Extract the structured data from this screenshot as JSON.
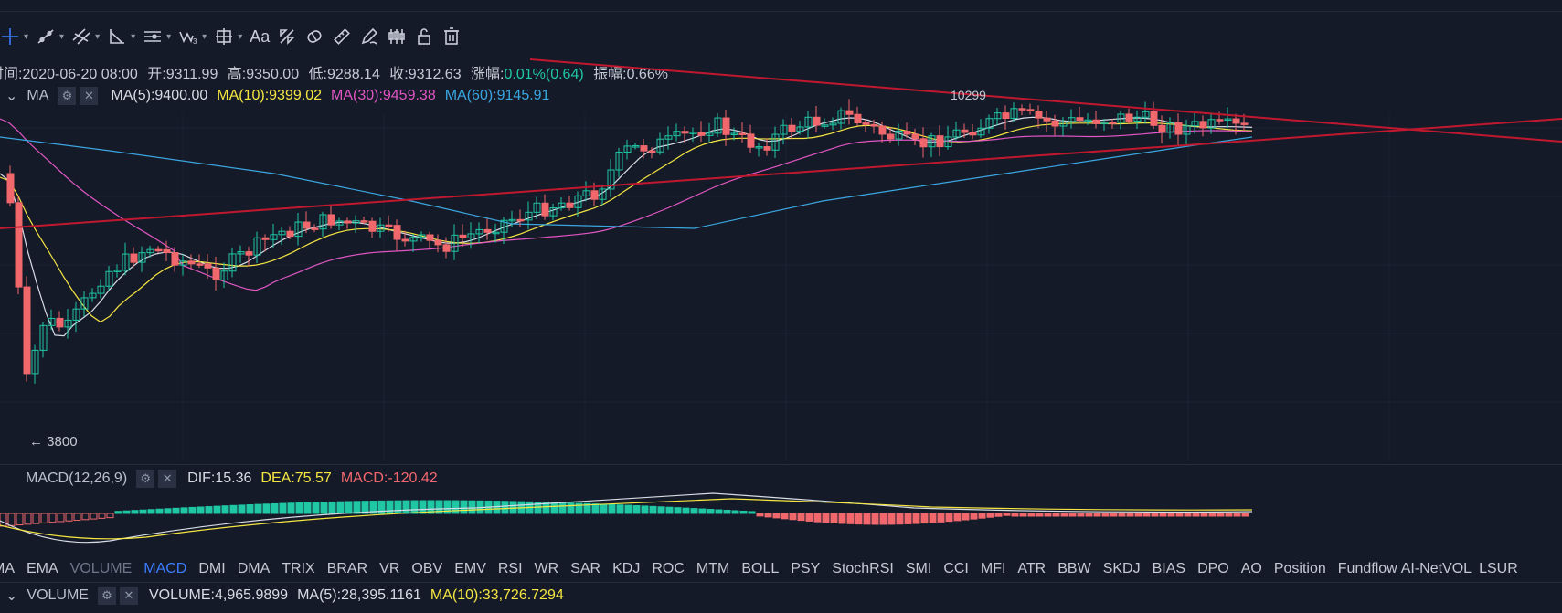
{
  "toolbar": {
    "items": [
      {
        "icon": "crosshair-icon",
        "caret": true
      },
      {
        "icon": "trend-line-icon",
        "caret": true
      },
      {
        "icon": "parallel-lines-icon",
        "caret": true
      },
      {
        "icon": "angle-icon",
        "caret": true
      },
      {
        "icon": "horizontal-lines-icon",
        "caret": true
      },
      {
        "icon": "wave-icon",
        "caret": true
      },
      {
        "icon": "rectangle-icon",
        "caret": true
      },
      {
        "icon": "text-icon",
        "caret": false
      },
      {
        "icon": "pattern-icon",
        "caret": false
      },
      {
        "icon": "eraser-icon",
        "caret": false
      },
      {
        "icon": "ruler-icon",
        "caret": false
      },
      {
        "icon": "pen-icon",
        "caret": false
      },
      {
        "icon": "candles-icon",
        "caret": false
      },
      {
        "icon": "lock-icon",
        "caret": false
      },
      {
        "icon": "trash-icon",
        "caret": false
      }
    ],
    "text_tool": "Aa"
  },
  "info": {
    "time_label": "时间:",
    "time": "2020-06-20 08:00",
    "open_label": "开:",
    "open": "9311.99",
    "high_label": "高:",
    "high": "9350.00",
    "low_label": "低:",
    "low": "9288.14",
    "close_label": "收:",
    "close": "9312.63",
    "change_label": "涨幅:",
    "change": "0.01%(0.64)",
    "amplitude_label": "振幅:",
    "amplitude": "0.66%"
  },
  "ma_legend": {
    "name": "MA",
    "items": [
      {
        "text": "MA(5):9400.00",
        "color": "#d7dbe4"
      },
      {
        "text": "MA(10):9399.02",
        "color": "#f5e642"
      },
      {
        "text": "MA(30):9459.38",
        "color": "#e056c3"
      },
      {
        "text": "MA(60):9145.91",
        "color": "#3aa6e0"
      }
    ]
  },
  "annotations": {
    "high": "10299",
    "low": "← 3800"
  },
  "macd_legend": {
    "name": "MACD(12,26,9)",
    "dif": "DIF:15.36",
    "dea": "DEA:75.57",
    "macd": "MACD:-120.42"
  },
  "indicator_tabs": [
    "MA",
    "EMA",
    "VOLUME",
    "MACD",
    "DMI",
    "DMA",
    "TRIX",
    "BRAR",
    "VR",
    "OBV",
    "EMV",
    "RSI",
    "WR",
    "SAR",
    "KDJ",
    "ROC",
    "MTM",
    "BOLL",
    "PSY",
    "StochRSI",
    "SMI",
    "CCI",
    "MFI",
    "ATR",
    "BBW",
    "SKDJ",
    "BIAS",
    "DPO",
    "AO",
    "Position",
    "Fundflow",
    "AI-NetVOL",
    "LSUR"
  ],
  "active_tab": "MACD",
  "dim_tab": "VOLUME",
  "vol_legend": {
    "name": "VOLUME",
    "vol": "VOLUME:4,965.9899",
    "ma5": "MA(5):28,395.1161",
    "ma10": "MA(10):33,726.7294"
  },
  "colors": {
    "up": "#1fc7a4",
    "down": "#f0686c",
    "trend": "#c0182e",
    "bg": "#151a28"
  }
}
